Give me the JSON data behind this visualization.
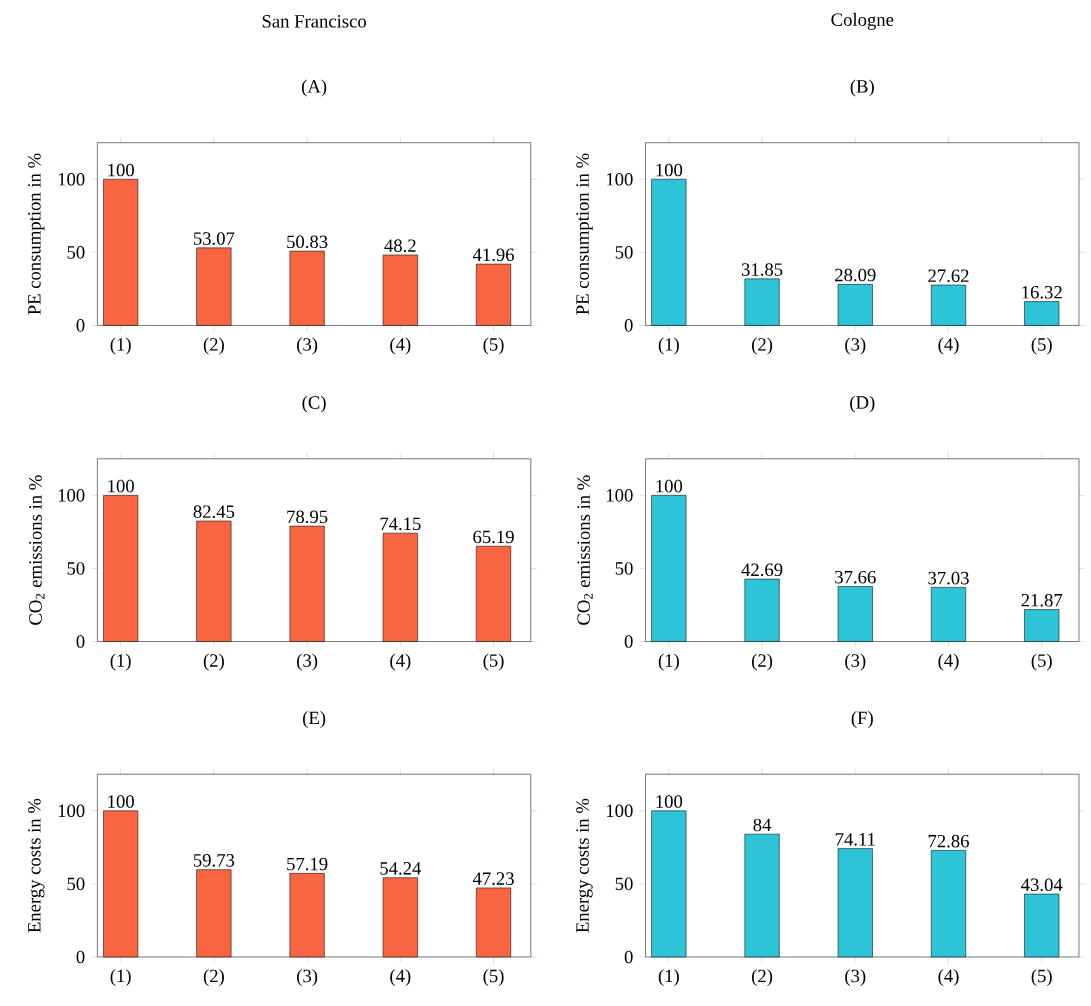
{
  "chart_data": [
    {
      "type": "bar",
      "title": "(A)",
      "annotations": [
        "San Francisco"
      ],
      "ylabel": "PE consumption in %",
      "categories": [
        "(1)",
        "(2)",
        "(3)",
        "(4)",
        "(5)"
      ],
      "values": [
        100,
        53.07,
        50.83,
        48.2,
        41.96
      ],
      "color": "#f86540",
      "ylim": [
        0,
        125
      ],
      "yticks": [
        0,
        50,
        100
      ],
      "data_labels": true
    },
    {
      "type": "bar",
      "title": "(B)",
      "annotations": [
        "Cologne"
      ],
      "ylabel": "PE consumption in %",
      "categories": [
        "(1)",
        "(2)",
        "(3)",
        "(4)",
        "(5)"
      ],
      "values": [
        100,
        31.85,
        28.09,
        27.62,
        16.32
      ],
      "color": "#2ec4d8",
      "ylim": [
        0,
        125
      ],
      "yticks": [
        0,
        50,
        100
      ],
      "data_labels": true
    },
    {
      "type": "bar",
      "title": "(C)",
      "ylabel": "CO$_{2}$ emissions in %",
      "categories": [
        "(1)",
        "(2)",
        "(3)",
        "(4)",
        "(5)"
      ],
      "values": [
        100,
        82.45,
        78.95,
        74.15,
        65.19
      ],
      "color": "#f86540",
      "ylim": [
        0,
        125
      ],
      "yticks": [
        0,
        50,
        100
      ],
      "data_labels": true
    },
    {
      "type": "bar",
      "title": "(D)",
      "ylabel": "CO$_{2}$ emissions in %",
      "categories": [
        "(1)",
        "(2)",
        "(3)",
        "(4)",
        "(5)"
      ],
      "values": [
        100,
        42.69,
        37.66,
        37.03,
        21.87
      ],
      "color": "#2ec4d8",
      "ylim": [
        0,
        125
      ],
      "yticks": [
        0,
        50,
        100
      ],
      "data_labels": true
    },
    {
      "type": "bar",
      "title": "(E)",
      "ylabel": "Energy costs in %",
      "categories": [
        "(1)",
        "(2)",
        "(3)",
        "(4)",
        "(5)"
      ],
      "values": [
        100,
        59.73,
        57.19,
        54.24,
        47.23
      ],
      "color": "#f86540",
      "ylim": [
        0,
        125
      ],
      "yticks": [
        0,
        50,
        100
      ],
      "data_labels": true
    },
    {
      "type": "bar",
      "title": "(F)",
      "ylabel": "Energy costs in %",
      "categories": [
        "(1)",
        "(2)",
        "(3)",
        "(4)",
        "(5)"
      ],
      "values": [
        100,
        84,
        74.11,
        72.86,
        43.04
      ],
      "color": "#2ec4d8",
      "ylim": [
        0,
        125
      ],
      "yticks": [
        0,
        50,
        100
      ],
      "data_labels": true
    }
  ]
}
